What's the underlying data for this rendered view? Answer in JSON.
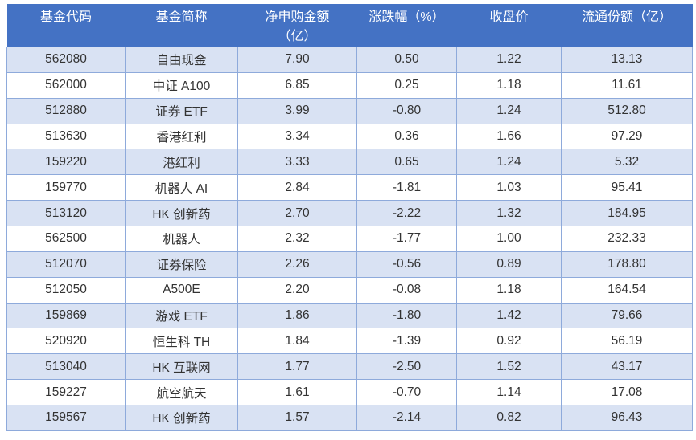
{
  "colors": {
    "header_bg": "#4472C4",
    "header_text": "#FFFFFF",
    "band_bg": "#D9E2F3",
    "border": "#8EAADB",
    "cell_text": "#333333",
    "page_bg": "#FFFFFF"
  },
  "table": {
    "columns": [
      {
        "label": "基金代码"
      },
      {
        "label": "基金简称"
      },
      {
        "label": "净申购金额\n（亿）"
      },
      {
        "label": "涨跌幅（%）"
      },
      {
        "label": "收盘价"
      },
      {
        "label": "流通份额（亿）"
      }
    ],
    "rows": [
      [
        "562080",
        "自由现金",
        "7.90",
        "0.50",
        "1.22",
        "13.13"
      ],
      [
        "562000",
        "中证 A100",
        "6.85",
        "0.25",
        "1.18",
        "11.61"
      ],
      [
        "512880",
        "证券 ETF",
        "3.99",
        "-0.80",
        "1.24",
        "512.80"
      ],
      [
        "513630",
        "香港红利",
        "3.34",
        "0.36",
        "1.66",
        "97.29"
      ],
      [
        "159220",
        "港红利",
        "3.33",
        "0.65",
        "1.24",
        "5.32"
      ],
      [
        "159770",
        "机器人 AI",
        "2.84",
        "-1.81",
        "1.03",
        "95.41"
      ],
      [
        "513120",
        "HK 创新药",
        "2.70",
        "-2.22",
        "1.32",
        "184.95"
      ],
      [
        "562500",
        "机器人",
        "2.32",
        "-1.77",
        "1.00",
        "232.33"
      ],
      [
        "512070",
        "证券保险",
        "2.26",
        "-0.56",
        "0.89",
        "178.80"
      ],
      [
        "512050",
        "A500E",
        "2.20",
        "-0.08",
        "1.18",
        "164.54"
      ],
      [
        "159869",
        "游戏 ETF",
        "1.86",
        "-1.80",
        "1.42",
        "79.66"
      ],
      [
        "520920",
        "恒生科 TH",
        "1.84",
        "-1.39",
        "0.92",
        "56.19"
      ],
      [
        "513040",
        "HK 互联网",
        "1.77",
        "-2.50",
        "1.52",
        "43.17"
      ],
      [
        "159227",
        "航空航天",
        "1.61",
        "-0.70",
        "1.14",
        "17.08"
      ],
      [
        "159567",
        "HK 创新药",
        "1.57",
        "-2.14",
        "0.82",
        "96.43"
      ]
    ]
  }
}
